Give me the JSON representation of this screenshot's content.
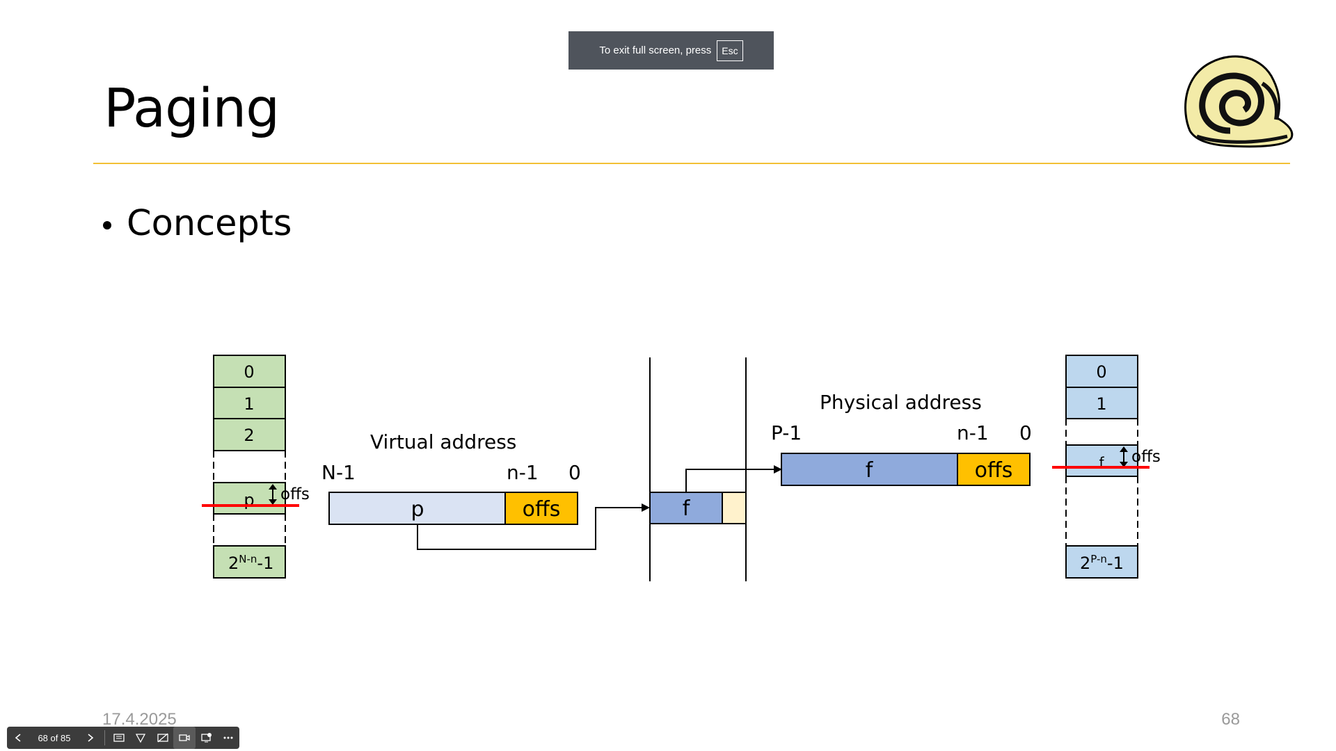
{
  "toast": {
    "text": "To exit full screen, press",
    "key": "Esc"
  },
  "slide": {
    "title": "Paging",
    "bullet": "Concepts",
    "date": "17.4.2025",
    "page_number": "68"
  },
  "diagram": {
    "virtual_table": {
      "rows": [
        "0",
        "1",
        "2",
        "p",
        "2N-n-1"
      ],
      "offs_label": "offs"
    },
    "virtual_address": {
      "label": "Virtual address",
      "hi_bit": "N-1",
      "mid_bit": "n-1",
      "lo_bit": "0",
      "page_field": "p",
      "offs_field": "offs"
    },
    "page_table_entry": {
      "frame": "f"
    },
    "physical_address": {
      "label": "Physical address",
      "hi_bit": "P-1",
      "mid_bit": "n-1",
      "lo_bit": "0",
      "frame_field": "f",
      "offs_field": "offs"
    },
    "physical_table": {
      "rows": [
        "0",
        "1",
        "f",
        "2P-n-1"
      ],
      "offs_label": "offs"
    },
    "colors": {
      "green": "#c5e0b4",
      "light_blue": "#dae3f3",
      "blue": "#8faadc",
      "pale_blue": "#bdd7ee",
      "orange": "#ffc000",
      "cream": "#fff2cc",
      "red": "#ff0000"
    }
  },
  "toolbar": {
    "counter": "68 of 85",
    "icons": [
      "chevron-left-icon",
      "chevron-right-icon",
      "grid-icon",
      "pen-icon",
      "hide-subtitles-icon",
      "camera-icon",
      "screen-share-icon",
      "more-icon"
    ]
  }
}
